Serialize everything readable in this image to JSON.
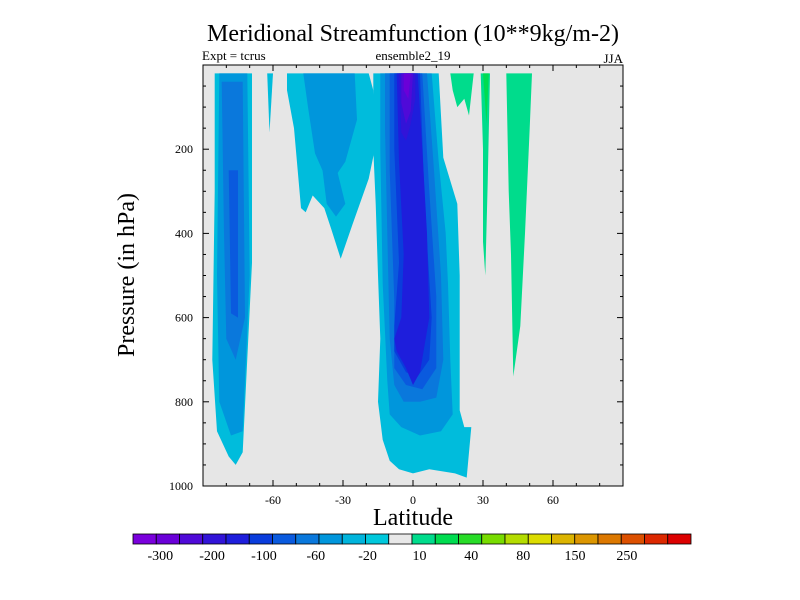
{
  "chart_data": {
    "type": "contour",
    "title": "Meridional Streamfunction (10**9kg/m-2)",
    "subtitle_left": "Expt = tcrus",
    "subtitle_center": "ensemble2_19",
    "subtitle_right": "JJA",
    "xlabel": "Latitude",
    "ylabel": "Pressure (in hPa)",
    "xlim": [
      -90,
      90
    ],
    "ylim": [
      1000,
      0
    ],
    "y_inverted": true,
    "x_ticks": [
      -60,
      -30,
      0,
      30,
      60
    ],
    "x_tick_labels": [
      "-60",
      "-30",
      "0",
      "30",
      "60"
    ],
    "y_ticks": [
      200,
      400,
      600,
      800,
      1000
    ],
    "y_tick_labels": [
      "200",
      "400",
      "600",
      "800",
      "1000"
    ],
    "missing_color": "#e6e6e6",
    "levels": [
      -300,
      -250,
      -200,
      -150,
      -100,
      -80,
      -60,
      -40,
      -20,
      -10,
      10,
      20,
      40,
      60,
      80,
      100,
      150,
      200,
      250,
      300
    ],
    "colorbar_labels": [
      "-300",
      "-200",
      "-100",
      "-60",
      "-20",
      "10",
      "40",
      "80",
      "150",
      "250"
    ],
    "colorbar_colors": [
      "#7a00dc",
      "#6a00d8",
      "#4f0ad8",
      "#3214d8",
      "#1e1edc",
      "#0a3cdc",
      "#0a5ade",
      "#0a78dc",
      "#0096dc",
      "#00b4dc",
      "#00c8dc",
      "#e8e8e8",
      "#00dc8c",
      "#00dc50",
      "#28dc28",
      "#78dc00",
      "#b4dc00",
      "#dcdc00",
      "#dcb400",
      "#dc9600",
      "#dc7800",
      "#dc5000",
      "#dc2800",
      "#dc0000"
    ],
    "regions": [
      {
        "name": "sh-cell-outer",
        "sign": "negative",
        "color": "#00bcdc",
        "points": [
          [
            -85,
            20
          ],
          [
            -69,
            20
          ],
          [
            -69,
            470
          ],
          [
            -73,
            920
          ],
          [
            -76,
            950
          ],
          [
            -79,
            930
          ],
          [
            -84,
            870
          ],
          [
            -86,
            700
          ],
          [
            -85,
            300
          ]
        ]
      },
      {
        "name": "sh-cell-band2",
        "sign": "negative",
        "color": "#0096dc",
        "points": [
          [
            -83,
            20
          ],
          [
            -71,
            20
          ],
          [
            -70,
            500
          ],
          [
            -73,
            870
          ],
          [
            -78,
            880
          ],
          [
            -83,
            800
          ],
          [
            -84,
            500
          ]
        ]
      },
      {
        "name": "sh-cell-band3",
        "sign": "negative",
        "color": "#0a78dc",
        "points": [
          [
            -82,
            40
          ],
          [
            -73,
            40
          ],
          [
            -72,
            600
          ],
          [
            -76,
            700
          ],
          [
            -80,
            650
          ],
          [
            -81,
            400
          ]
        ]
      },
      {
        "name": "sh-cell-core",
        "sign": "negative",
        "color": "#0a5ade",
        "points": [
          [
            -79,
            250
          ],
          [
            -75,
            250
          ],
          [
            -75,
            600
          ],
          [
            -78,
            590
          ]
        ]
      },
      {
        "name": "sh-small-wisp",
        "sign": "negative",
        "color": "#00bcdc",
        "points": [
          [
            -62.5,
            20
          ],
          [
            -60,
            20
          ],
          [
            -61.5,
            160
          ]
        ]
      },
      {
        "name": "mid-plume-outer",
        "sign": "negative",
        "color": "#00bcdc",
        "points": [
          [
            -54,
            20
          ],
          [
            -19,
            20
          ],
          [
            -17,
            60
          ],
          [
            -16,
            190
          ],
          [
            -19,
            270
          ],
          [
            -26,
            380
          ],
          [
            -31,
            460
          ],
          [
            -35,
            390
          ],
          [
            -38,
            340
          ],
          [
            -43,
            310
          ],
          [
            -46,
            350
          ],
          [
            -48,
            340
          ],
          [
            -51,
            150
          ],
          [
            -54,
            60
          ]
        ]
      },
      {
        "name": "mid-plume-inner",
        "sign": "negative",
        "color": "#0096dc",
        "points": [
          [
            -47,
            20
          ],
          [
            -25,
            20
          ],
          [
            -24,
            130
          ],
          [
            -29,
            230
          ],
          [
            -34,
            270
          ],
          [
            -38,
            260
          ],
          [
            -42,
            210
          ],
          [
            -45,
            100
          ]
        ]
      },
      {
        "name": "mid-plume-low",
        "sign": "negative",
        "color": "#0096dc",
        "points": [
          [
            -39,
            240
          ],
          [
            -33,
            240
          ],
          [
            -29,
            330
          ],
          [
            -33,
            360
          ],
          [
            -37,
            330
          ]
        ]
      },
      {
        "name": "eq-cell-outer",
        "sign": "negative",
        "color": "#00bcdc",
        "points": [
          [
            -17,
            20
          ],
          [
            11,
            20
          ],
          [
            13,
            220
          ],
          [
            19,
            330
          ],
          [
            20,
            500
          ],
          [
            20,
            700
          ],
          [
            20,
            820
          ],
          [
            22,
            860
          ],
          [
            25,
            860
          ],
          [
            23,
            980
          ],
          [
            18,
            970
          ],
          [
            7,
            960
          ],
          [
            0,
            970
          ],
          [
            -6,
            960
          ],
          [
            -10,
            940
          ],
          [
            -13,
            890
          ],
          [
            -15,
            800
          ],
          [
            -14,
            650
          ],
          [
            -15,
            500
          ],
          [
            -16,
            330
          ],
          [
            -17,
            200
          ]
        ]
      },
      {
        "name": "eq-cell-band2",
        "sign": "negative",
        "color": "#0096dc",
        "points": [
          [
            -14,
            20
          ],
          [
            8,
            20
          ],
          [
            11,
            230
          ],
          [
            14,
            400
          ],
          [
            15,
            520
          ],
          [
            16,
            700
          ],
          [
            17,
            830
          ],
          [
            12,
            870
          ],
          [
            3,
            880
          ],
          [
            -5,
            860
          ],
          [
            -10,
            830
          ],
          [
            -11,
            750
          ],
          [
            -13,
            520
          ],
          [
            -14,
            200
          ]
        ]
      },
      {
        "name": "eq-cell-band3",
        "sign": "negative",
        "color": "#0a78dc",
        "points": [
          [
            -12,
            20
          ],
          [
            6,
            20
          ],
          [
            9,
            250
          ],
          [
            12,
            500
          ],
          [
            13,
            700
          ],
          [
            10,
            790
          ],
          [
            3,
            800
          ],
          [
            -4,
            800
          ],
          [
            -8,
            760
          ],
          [
            -10,
            650
          ],
          [
            -11,
            400
          ],
          [
            -12,
            150
          ]
        ]
      },
      {
        "name": "eq-cell-band4",
        "sign": "negative",
        "color": "#0a5ade",
        "points": [
          [
            -10,
            20
          ],
          [
            4,
            20
          ],
          [
            7,
            300
          ],
          [
            10,
            550
          ],
          [
            10,
            720
          ],
          [
            4,
            770
          ],
          [
            -3,
            760
          ],
          [
            -8,
            720
          ],
          [
            -8,
            560
          ],
          [
            -10,
            250
          ]
        ]
      },
      {
        "name": "eq-cell-band5",
        "sign": "negative",
        "color": "#0a3cdc",
        "points": [
          [
            -8,
            20
          ],
          [
            3,
            20
          ],
          [
            5,
            330
          ],
          [
            8,
            600
          ],
          [
            7,
            700
          ],
          [
            2,
            740
          ],
          [
            -3,
            730
          ],
          [
            -8,
            680
          ],
          [
            -8,
            620
          ],
          [
            -6,
            470
          ],
          [
            -8,
            200
          ]
        ]
      },
      {
        "name": "eq-cell-band6",
        "sign": "negative",
        "color": "#1e1edc",
        "points": [
          [
            -7,
            20
          ],
          [
            2,
            20
          ],
          [
            4,
            200
          ],
          [
            6,
            400
          ],
          [
            7,
            600
          ],
          [
            3,
            730
          ],
          [
            0,
            760
          ],
          [
            -3,
            720
          ],
          [
            -7,
            680
          ],
          [
            -8,
            650
          ],
          [
            -5,
            600
          ],
          [
            -4,
            450
          ],
          [
            -6,
            230
          ]
        ]
      },
      {
        "name": "eq-cell-core",
        "sign": "negative",
        "color": "#3214d8",
        "points": [
          [
            -6,
            20
          ],
          [
            1,
            20
          ],
          [
            1,
            80
          ],
          [
            -1,
            140
          ],
          [
            -3,
            180
          ],
          [
            -5,
            160
          ]
        ]
      },
      {
        "name": "eq-cell-core2",
        "sign": "negative",
        "color": "#4f0ad8",
        "points": [
          [
            -5,
            20
          ],
          [
            0,
            20
          ],
          [
            -1,
            110
          ],
          [
            -3,
            140
          ],
          [
            -5,
            90
          ]
        ]
      },
      {
        "name": "eq-cell-core3",
        "sign": "negative",
        "color": "#6a00d8",
        "points": [
          [
            -4,
            20
          ],
          [
            -1,
            20
          ],
          [
            -2,
            80
          ],
          [
            -4,
            60
          ]
        ]
      },
      {
        "name": "pos-wisp-1",
        "sign": "positive",
        "color": "#00dc8c",
        "points": [
          [
            16,
            20
          ],
          [
            26,
            20
          ],
          [
            24,
            120
          ],
          [
            22,
            80
          ],
          [
            19,
            100
          ],
          [
            17,
            60
          ]
        ]
      },
      {
        "name": "pos-wisp-2",
        "sign": "positive",
        "color": "#00dc8c",
        "points": [
          [
            29,
            20
          ],
          [
            33,
            20
          ],
          [
            32,
            280
          ],
          [
            31,
            500
          ],
          [
            30,
            420
          ],
          [
            30,
            200
          ]
        ]
      },
      {
        "name": "pos-wisp-2-inner",
        "sign": "positive",
        "color": "#00dc50",
        "points": [
          [
            30,
            20
          ],
          [
            32.5,
            20
          ],
          [
            31.5,
            140
          ]
        ]
      },
      {
        "name": "pos-wisp-3",
        "sign": "positive",
        "color": "#00dc8c",
        "points": [
          [
            40,
            20
          ],
          [
            51,
            20
          ],
          [
            50,
            150
          ],
          [
            48,
            400
          ],
          [
            46,
            620
          ],
          [
            43,
            740
          ],
          [
            42,
            450
          ],
          [
            41,
            300
          ]
        ]
      }
    ]
  }
}
